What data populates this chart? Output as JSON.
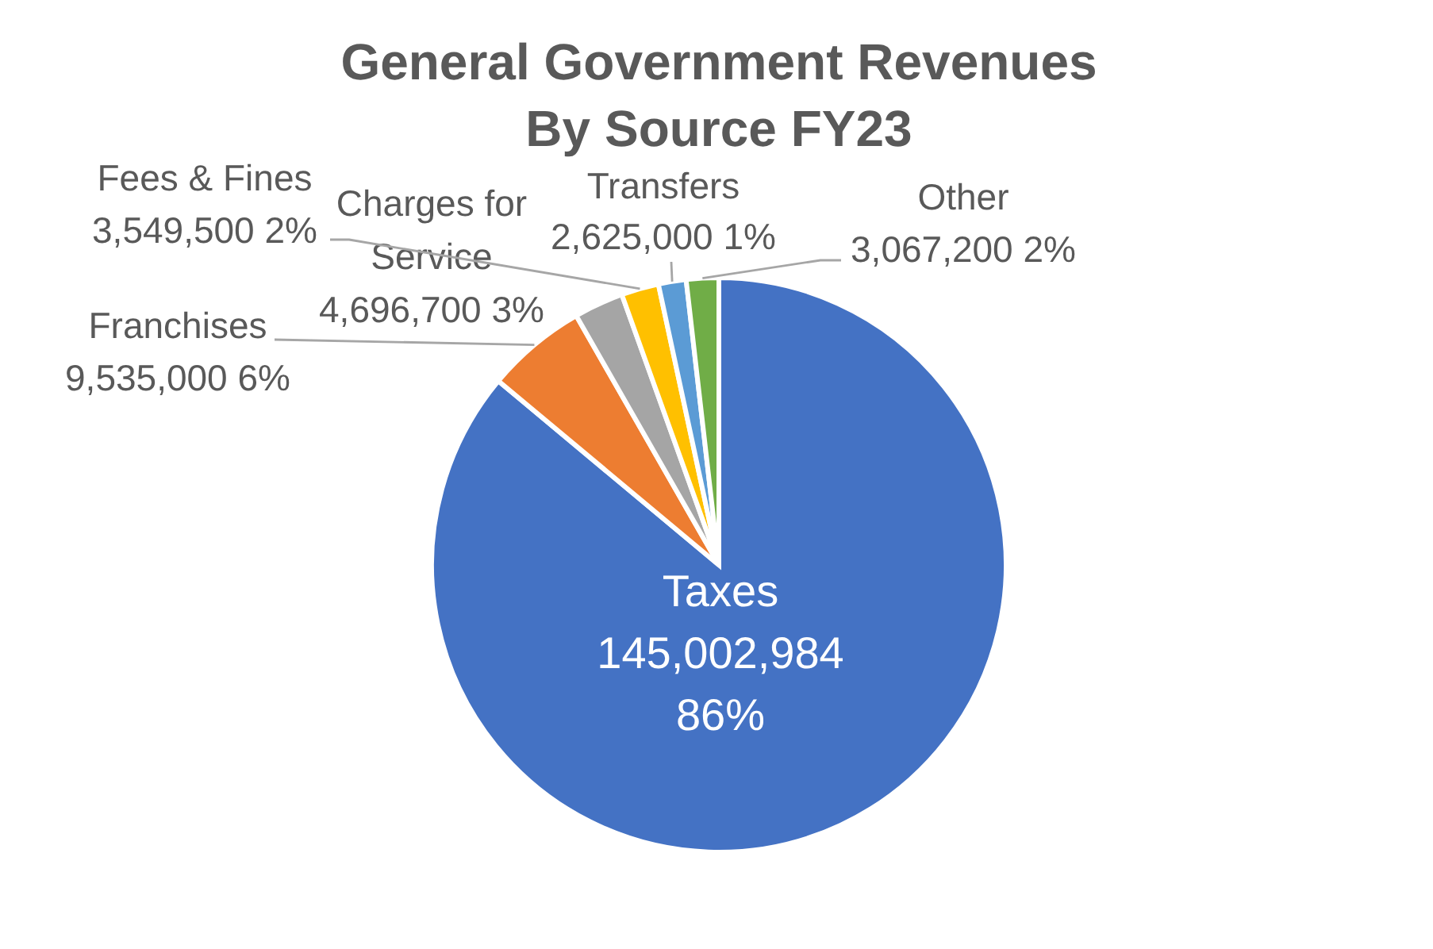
{
  "chart_data": {
    "type": "pie",
    "title": "General Government Revenues By Source FY23",
    "categories": [
      "Taxes",
      "Franchises",
      "Charges for Service",
      "Fees & Fines",
      "Transfers",
      "Other"
    ],
    "values": [
      145002984,
      9535000,
      4696700,
      3549500,
      2625000,
      3067200
    ],
    "colors": [
      "#4472c4",
      "#ed7d31",
      "#a5a5a5",
      "#ffc000",
      "#5b9bd5",
      "#70ad47"
    ],
    "value_labels": [
      "145,002,984 86%",
      "9,535,000 6%",
      "4,696,700 3%",
      "3,549,500 2%",
      "2,625,000 1%",
      "3,067,200 2%"
    ]
  }
}
